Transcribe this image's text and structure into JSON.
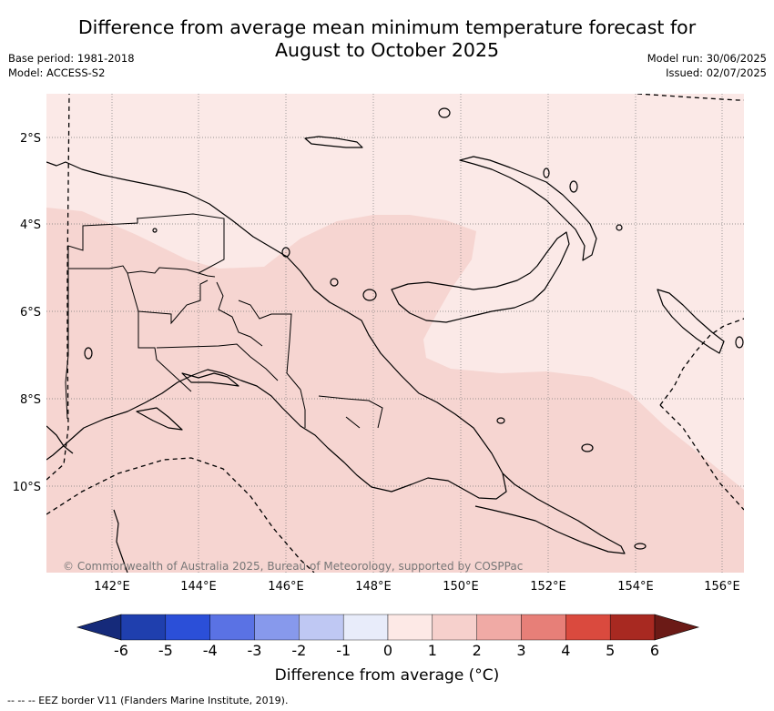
{
  "header": {
    "title_line1": "Difference from average mean minimum temperature forecast for",
    "title_line2": "August to October 2025",
    "base_period": "Base period: 1981-2018",
    "model": "Model: ACCESS-S2",
    "model_run": "Model run: 30/06/2025",
    "issued": "Issued: 02/07/2025"
  },
  "map": {
    "region": "Papua New Guinea",
    "lat_labels": [
      "2°S",
      "4°S",
      "6°S",
      "8°S",
      "10°S"
    ],
    "lon_labels": [
      "142°E",
      "144°E",
      "146°E",
      "148°E",
      "150°E",
      "152°E",
      "154°E",
      "156°E"
    ],
    "copyright": "© Commonwealth of Australia 2025, Bureau of Meteorology, supported by COSPPac",
    "fill_colors": {
      "light": "#fbe9e7",
      "medium": "#f6d5d1",
      "land_outline": "#000000"
    }
  },
  "legend": {
    "ticks": [
      "-6",
      "-5",
      "-4",
      "-3",
      "-2",
      "-1",
      "0",
      "1",
      "2",
      "3",
      "4",
      "5",
      "6"
    ],
    "colors": [
      "#1f3fae",
      "#2b4fd8",
      "#5a72e4",
      "#8799ec",
      "#bfc8f3",
      "#e8ecfa",
      "#fde9e6",
      "#f6d0cc",
      "#f0aaa5",
      "#e77f78",
      "#da4a3e",
      "#a82921"
    ],
    "low_extend_color": "#152a7a",
    "high_extend_color": "#6b1a16",
    "label": "Difference from average (°C)"
  },
  "footnote": "-- -- -- EEZ border V11 (Flanders Marine Institute, 2019)."
}
